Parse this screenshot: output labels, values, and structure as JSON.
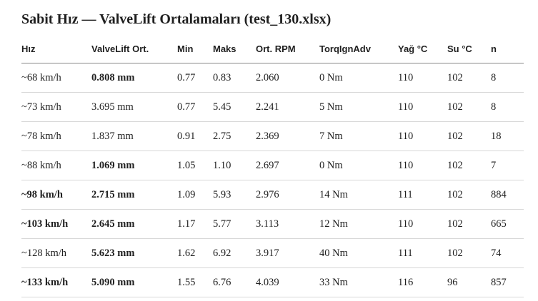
{
  "header": {
    "title": "Sabit Hız — ValveLift Ortalamaları (test_130.xlsx)"
  },
  "table": {
    "columns": [
      "Hız",
      "ValveLift Ort.",
      "Min",
      "Maks",
      "Ort. RPM",
      "TorqIgnAdv",
      "Yağ °C",
      "Su °C",
      "n"
    ],
    "rows": [
      [
        "~68 km/h",
        "0.808 mm",
        "0.77",
        "0.83",
        "2.060",
        "0 Nm",
        "110",
        "102",
        "8"
      ],
      [
        "~73 km/h",
        "3.695 mm",
        "0.77",
        "5.45",
        "2.241",
        "5 Nm",
        "110",
        "102",
        "8"
      ],
      [
        "~78 km/h",
        "1.837 mm",
        "0.91",
        "2.75",
        "2.369",
        "7 Nm",
        "110",
        "102",
        "18"
      ],
      [
        "~88 km/h",
        "1.069 mm",
        "1.05",
        "1.10",
        "2.697",
        "0 Nm",
        "110",
        "102",
        "7"
      ],
      [
        "~98 km/h",
        "2.715 mm",
        "1.09",
        "5.93",
        "2.976",
        "14 Nm",
        "111",
        "102",
        "884"
      ],
      [
        "~103 km/h",
        "2.645 mm",
        "1.17",
        "5.77",
        "3.113",
        "12 Nm",
        "110",
        "102",
        "665"
      ],
      [
        "~128 km/h",
        "5.623 mm",
        "1.62",
        "6.92",
        "3.917",
        "40 Nm",
        "111",
        "102",
        "74"
      ],
      [
        "~133 km/h",
        "5.090 mm",
        "1.55",
        "6.76",
        "4.039",
        "33 Nm",
        "116",
        "96",
        "857"
      ]
    ]
  }
}
